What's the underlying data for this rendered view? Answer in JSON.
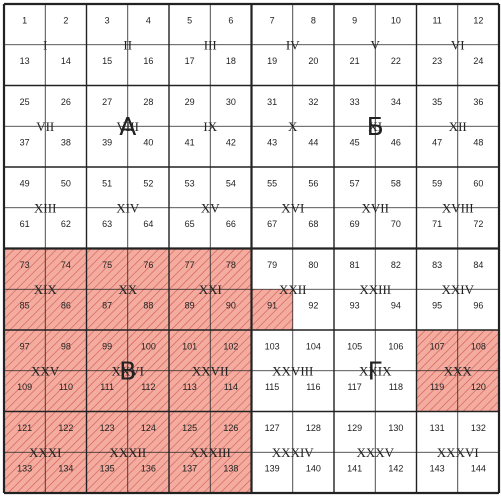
{
  "quadrants": [
    {
      "letter": "А",
      "highlighted": false
    },
    {
      "letter": "Б",
      "highlighted": false
    },
    {
      "letter": "В",
      "highlighted": true
    },
    {
      "letter": "Г",
      "highlighted": false
    }
  ],
  "roman_blocks": [
    "I",
    "II",
    "III",
    "IV",
    "V",
    "VI",
    "VII",
    "VIII",
    "IX",
    "X",
    "XI",
    "XII",
    "XIII",
    "XIV",
    "XV",
    "XVI",
    "XVII",
    "XVIII",
    "XIX",
    "XX",
    "XXI",
    "XXII",
    "XXIII",
    "XXIV",
    "XXV",
    "XXVI",
    "XXVII",
    "XXVIII",
    "XXIX",
    "XXX",
    "XXXI",
    "XXXII",
    "XXXIII",
    "XXXIV",
    "XXXV",
    "XXXVI"
  ],
  "cell_count": 144,
  "highlighted_cells": [
    91,
    107,
    108,
    119,
    120
  ],
  "colors": {
    "highlight_fill": "#f4aca0",
    "highlight_hatch": "#d05a4c",
    "grid_line": "#222222",
    "background": "#ffffff"
  }
}
